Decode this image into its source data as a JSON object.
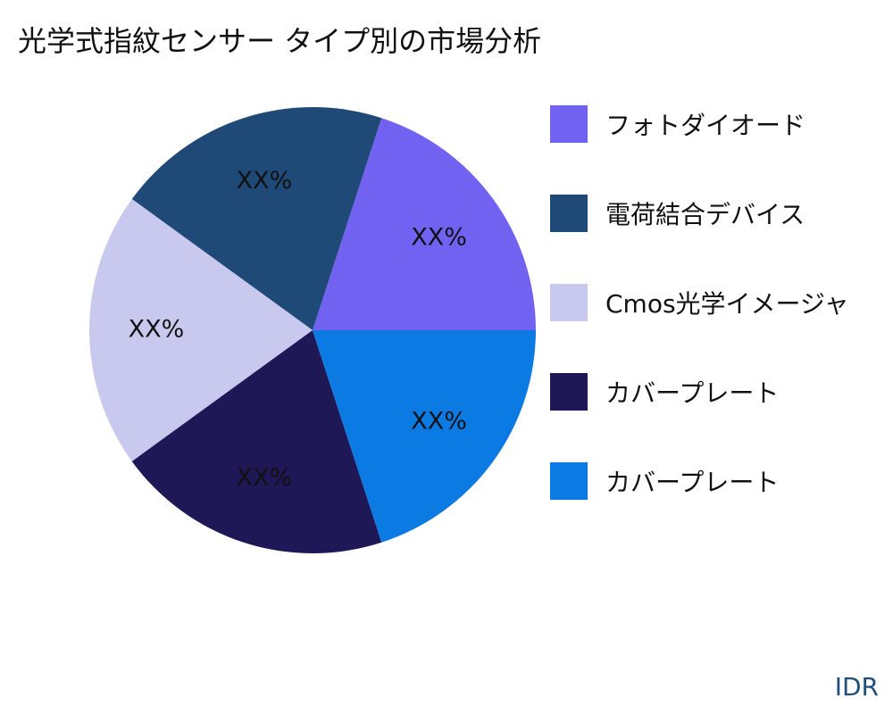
{
  "chart_data": {
    "type": "pie",
    "title": "光学式指紋センサー タイプ別の市場分析",
    "slices": [
      {
        "name": "フォトダイオード",
        "label": "XX%",
        "value": 20,
        "color": "#7262f2"
      },
      {
        "name": "電荷結合デバイス",
        "label": "XX%",
        "value": 20,
        "color": "#1f4a78"
      },
      {
        "name": "Cmos光学イメージャ",
        "label": "XX%",
        "value": 20,
        "color": "#c9c9f0"
      },
      {
        "name": "カバープレート",
        "label": "XX%",
        "value": 20,
        "color": "#1e1856"
      },
      {
        "name": "カバープレート",
        "label": "XX%",
        "value": 20,
        "color": "#0c7ae3"
      }
    ],
    "legend_position": "right"
  },
  "brand": "IDR"
}
